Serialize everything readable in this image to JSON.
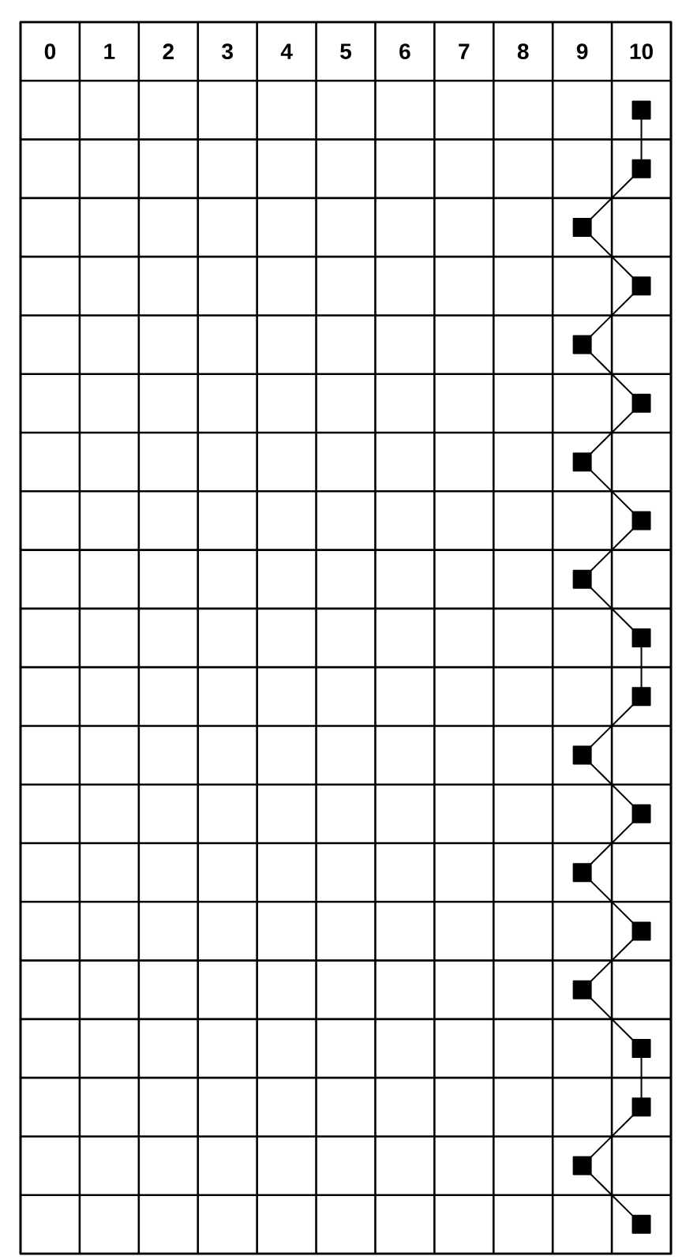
{
  "chart_data": {
    "type": "line",
    "orientation": "horizontal",
    "categories": [
      null,
      null,
      null,
      null,
      null,
      null,
      null,
      null,
      null,
      null,
      null,
      null,
      null,
      null,
      null,
      null,
      null,
      null,
      null,
      null
    ],
    "values": [
      10,
      10,
      9,
      10,
      9,
      10,
      9,
      10,
      9,
      10,
      10,
      9,
      10,
      9,
      10,
      9,
      10,
      10,
      9,
      10
    ],
    "color": "#000000",
    "marker": "square",
    "line_style": "solid",
    "xlim": [
      -0.5,
      10.5
    ],
    "xticks": [
      0,
      1,
      2,
      3,
      4,
      5,
      6,
      7,
      8,
      9,
      10
    ],
    "grid": true
  }
}
